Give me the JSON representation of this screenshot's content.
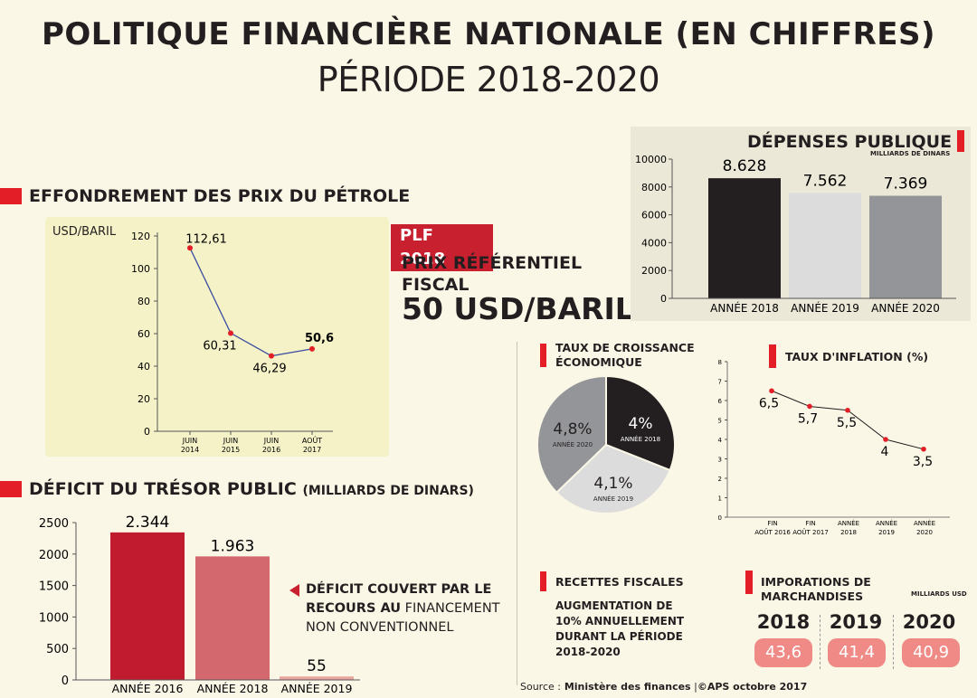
{
  "header": {
    "title": "POLITIQUE FINANCIÈRE NATIONALE (EN CHIFFRES)",
    "subtitle": "PÉRIODE 2018-2020"
  },
  "oil": {
    "heading": "EFFONDREMENT DES PRIX DU PÉTROLE",
    "unit": "USD/BARIL"
  },
  "plf": {
    "tag": "PLF 2018",
    "line1": "PRIX RÉFÉRENTIEL",
    "line2": "FISCAL",
    "value": "50 USD/BARIL"
  },
  "spending": {
    "heading": "DÉPENSES PUBLIQUE",
    "unit": "MILLIARDS DE DINARS"
  },
  "deficit": {
    "heading": "DÉFICIT DU TRÉSOR PUBLIC",
    "unit": "(MILLIARDS  DE DINARS)",
    "note_bold1": "DÉFICIT COUVERT PAR LE",
    "note_bold2": "RECOURS AU",
    "note_light2": " FINANCEMENT",
    "note_light3": "NON CONVENTIONNEL"
  },
  "growth": {
    "heading1": "TAUX DE CROISSANCE",
    "heading2": "ÉCONOMIQUE"
  },
  "inflation": {
    "heading": "TAUX D'INFLATION (%)"
  },
  "recettes": {
    "heading": "RECETTES FISCALES",
    "line1": "AUGMENTATION DE",
    "line2": "10% ANNUELLEMENT",
    "line3": "DURANT LA PÉRIODE",
    "line4": "2018-2020"
  },
  "imports": {
    "heading": "IMPORATIONS DE MARCHANDISES",
    "unit": "MILLIARDS USD",
    "years": [
      "2018",
      "2019",
      "2020"
    ],
    "values": [
      "43,6",
      "41,4",
      "40,9"
    ]
  },
  "footer": {
    "source_label": "Source :",
    "source_name": " Ministère des finances",
    "copyright": "©APS octobre 2017"
  },
  "colors": {
    "red": "#e41e26",
    "dark_red": "#c01b2e",
    "pink": "#ef8a86",
    "black_bar": "#231f20"
  },
  "chart_data": [
    {
      "id": "oil",
      "type": "line",
      "categories": [
        [
          "JUIN",
          "2014"
        ],
        [
          "JUIN",
          "2015"
        ],
        [
          "JUIN",
          "2016"
        ],
        [
          "AOÛT",
          "2017"
        ]
      ],
      "values": [
        112.61,
        60.31,
        46.29,
        50.6
      ],
      "labels": [
        "112,61",
        "60,31",
        "46,29",
        "50,6"
      ],
      "ylabel": "USD/BARIL",
      "ylim": [
        0,
        120
      ],
      "yticks": [
        0,
        20,
        40,
        60,
        80,
        100,
        120
      ]
    },
    {
      "id": "spending",
      "type": "bar",
      "categories": [
        "ANNÉE 2018",
        "ANNÉE 2019",
        "ANNÉE 2020"
      ],
      "values": [
        8628,
        7562,
        7369
      ],
      "labels": [
        "8.628",
        "7.562",
        "7.369"
      ],
      "colors": [
        "#231f20",
        "#dcdcdc",
        "#939598"
      ],
      "ylim": [
        0,
        10000
      ],
      "yticks": [
        0,
        2000,
        4000,
        6000,
        8000,
        10000
      ]
    },
    {
      "id": "deficit",
      "type": "bar",
      "categories": [
        "ANNÉE 2016",
        "ANNÉE 2018",
        "ANNÉE 2019"
      ],
      "values": [
        2344,
        1963,
        55
      ],
      "labels": [
        "2.344",
        "1.963",
        "55"
      ],
      "colors": [
        "#c01b2e",
        "#d3696e",
        "#eaa69e"
      ],
      "ylim": [
        0,
        2500
      ],
      "yticks": [
        0,
        500,
        1000,
        1500,
        2000,
        2500
      ]
    },
    {
      "id": "growth",
      "type": "pie",
      "slices": [
        {
          "value": 4.0,
          "label": "4%",
          "year": "ANNÉE 2018",
          "color": "#231f20"
        },
        {
          "value": 4.1,
          "label": "4,1%",
          "year": "ANNÉE 2019",
          "color": "#dcdcdc"
        },
        {
          "value": 4.8,
          "label": "4,8%",
          "year": "ANNÉE 2020",
          "color": "#939598"
        }
      ]
    },
    {
      "id": "inflation",
      "type": "line",
      "categories": [
        [
          "FIN",
          "AOÛT 2016"
        ],
        [
          "FIN",
          "AOÛT 2017"
        ],
        [
          "ANNÉE",
          "2018"
        ],
        [
          "ANNÉE",
          "2019"
        ],
        [
          "ANNÉE",
          "2020"
        ]
      ],
      "values": [
        6.5,
        5.7,
        5.5,
        4,
        3.5
      ],
      "labels": [
        "6,5",
        "5,7",
        "5,5",
        "4",
        "3,5"
      ],
      "ylim": [
        0,
        8
      ],
      "yticks": [
        0,
        1,
        2,
        3,
        4,
        5,
        6,
        7,
        8
      ]
    }
  ]
}
